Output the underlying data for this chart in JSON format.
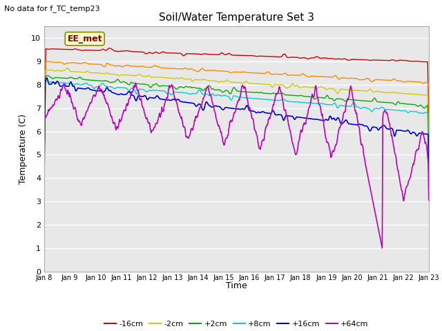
{
  "title": "Soil/Water Temperature Set 3",
  "xlabel": "Time",
  "ylabel": "Temperature (C)",
  "top_left_text": "No data for f_TC_temp23",
  "annotation_box": "EE_met",
  "ylim": [
    0.0,
    10.5
  ],
  "yticks": [
    0.0,
    1.0,
    2.0,
    3.0,
    4.0,
    5.0,
    6.0,
    7.0,
    8.0,
    9.0,
    10.0
  ],
  "xtick_labels": [
    "Jan 8",
    "Jan 9",
    "Jan 10",
    "Jan 11",
    "Jan 12",
    "Jan 13",
    "Jan 14",
    "Jan 15",
    "Jan 16",
    "Jan 17",
    "Jan 18",
    "Jan 19",
    "Jan 20",
    "Jan 21",
    "Jan 22",
    "Jan 23"
  ],
  "series": {
    "-16cm": {
      "color": "#cc0000",
      "linewidth": 1.0
    },
    "-8cm": {
      "color": "#ff8800",
      "linewidth": 1.0
    },
    "-2cm": {
      "color": "#cccc00",
      "linewidth": 1.0
    },
    "+2cm": {
      "color": "#00aa00",
      "linewidth": 1.0
    },
    "+8cm": {
      "color": "#00cccc",
      "linewidth": 1.0
    },
    "+16cm": {
      "color": "#0000cc",
      "linewidth": 1.2
    },
    "+64cm": {
      "color": "#bb00bb",
      "linewidth": 1.2
    }
  },
  "num_points": 720,
  "days": 15,
  "fig_bg": "#ffffff",
  "plot_bg": "#e8e8e8",
  "grid_color": "#ffffff"
}
